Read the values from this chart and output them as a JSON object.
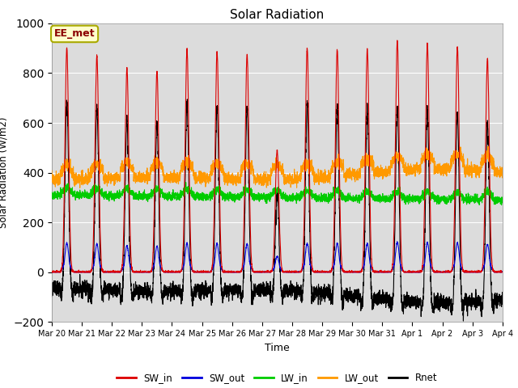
{
  "title": "Solar Radiation",
  "xlabel": "Time",
  "ylabel": "Solar Radiation (W/m2)",
  "ylim": [
    -200,
    1000
  ],
  "annotation": "EE_met",
  "background_color": "#dcdcdc",
  "legend": [
    "SW_in",
    "SW_out",
    "LW_in",
    "LW_out",
    "Rnet"
  ],
  "colors": {
    "SW_in": "#dd0000",
    "SW_out": "#0000dd",
    "LW_in": "#00cc00",
    "LW_out": "#ff9900",
    "Rnet": "#000000"
  },
  "n_days": 15,
  "points_per_day": 288,
  "xtick_labels": [
    "Mar 20",
    "Mar 21",
    "Mar 22",
    "Mar 23",
    "Mar 24",
    "Mar 25",
    "Mar 26",
    "Mar 27",
    "Mar 28",
    "Mar 29",
    "Mar 30",
    "Mar 31",
    "Apr 1",
    "Apr 2",
    "Apr 3",
    "Apr 4"
  ],
  "grid_color": "#ffffff",
  "linewidth": 0.8,
  "yticks": [
    -200,
    0,
    200,
    400,
    600,
    800,
    1000
  ]
}
